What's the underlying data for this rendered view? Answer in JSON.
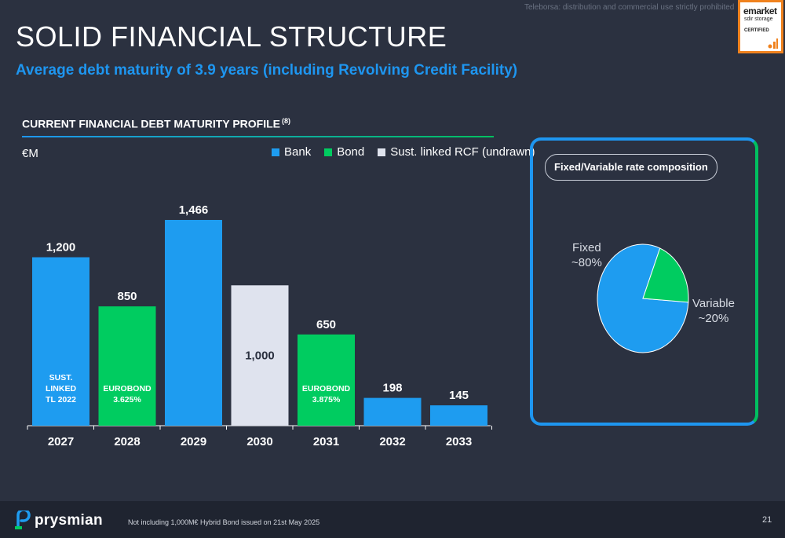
{
  "watermark": "Teleborsa: distribution and commercial use strictly prohibited",
  "certification": {
    "line1": "emarket",
    "line2": "sdir storage",
    "line3": "CERTIFIED"
  },
  "title": "SOLID FINANCIAL STRUCTURE",
  "subtitle": "Average debt maturity of 3.9 years (including Revolving Credit Facility)",
  "section": {
    "title": "CURRENT FINANCIAL DEBT MATURITY PROFILE",
    "note": "(8)",
    "unit": "€M"
  },
  "colors": {
    "bank": "#1e9cf0",
    "bond": "#00cc60",
    "rcf": "#dfe3ee",
    "background": "#2b3140",
    "accent": "#1e96f0"
  },
  "chart_data": [
    {
      "type": "bar",
      "title": "CURRENT FINANCIAL DEBT MATURITY PROFILE",
      "ylabel": "€M",
      "categories": [
        "2027",
        "2028",
        "2029",
        "2030",
        "2031",
        "2032",
        "2033"
      ],
      "values": [
        1200,
        850,
        1466,
        1000,
        650,
        198,
        145
      ],
      "value_labels": [
        "1,200",
        "850",
        "1,466",
        "1,000",
        "650",
        "198",
        "145"
      ],
      "bar_series": [
        "Bank",
        "Bond",
        "Bank",
        "Sust. linked RCF (undrawn)",
        "Bond",
        "Bank",
        "Bank"
      ],
      "series": [
        {
          "name": "Bank",
          "color": "#1e9cf0"
        },
        {
          "name": "Bond",
          "color": "#00cc60"
        },
        {
          "name": "Sust. linked RCF (undrawn)",
          "color": "#dfe3ee"
        }
      ],
      "annotations": [
        {
          "category": "2027",
          "lines": [
            "SUST.",
            "LINKED",
            "TL 2022"
          ]
        },
        {
          "category": "2028",
          "lines": [
            "EUROBOND",
            "3.625%"
          ]
        },
        {
          "category": "2031",
          "lines": [
            "EUROBOND",
            "3.875%"
          ]
        }
      ],
      "ylim": [
        0,
        1466
      ],
      "legend_position": "top-right",
      "grid": false
    },
    {
      "type": "pie",
      "title": "Fixed/Variable rate composition",
      "labels": [
        "Fixed",
        "Variable"
      ],
      "value_labels": [
        "~80%",
        "~20%"
      ],
      "values": [
        80,
        20
      ],
      "colors": [
        "#1e9cf0",
        "#00cc60"
      ]
    }
  ],
  "footer": {
    "brand": "prysmian",
    "note": "Not including 1,000M€ Hybrid Bond issued on 21st May 2025",
    "page": "21"
  }
}
